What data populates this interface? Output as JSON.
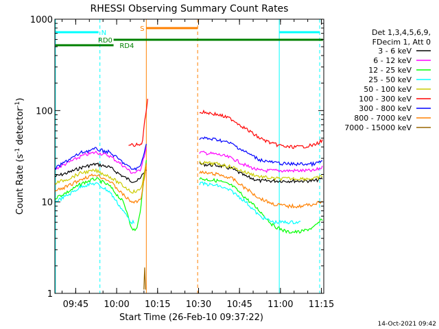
{
  "chart_data": {
    "type": "line",
    "title": "RHESSI Observing Summary Count Rates",
    "xlabel": "Start Time (26-Feb-10 09:37:22)",
    "ylabel_main": "Count Rate (s",
    "ylabel_sup": "-1",
    "ylabel_mid": " detector",
    "ylabel_sup2": "-1",
    "ylabel_end": ")",
    "y_scale": "log",
    "ylim": [
      1,
      1000
    ],
    "xlim_minutes": [
      0,
      98.5
    ],
    "x_ticks": [
      {
        "label": "09:45",
        "min": 7.63
      },
      {
        "label": "10:00",
        "min": 22.63
      },
      {
        "label": "10:15",
        "min": 37.63
      },
      {
        "label": "10:30",
        "min": 52.63
      },
      {
        "label": "10:45",
        "min": 67.63
      },
      {
        "label": "11:00",
        "min": 82.63
      },
      {
        "label": "11:15",
        "min": 97.63
      }
    ],
    "y_ticks": [
      {
        "label": "1",
        "v": 1
      },
      {
        "label": "10",
        "v": 10
      },
      {
        "label": "100",
        "v": 100
      },
      {
        "label": "1000",
        "v": 1000
      }
    ],
    "legend_header": [
      "Det 1,3,4,5,6,9,",
      "FDecim 1, Att 0"
    ],
    "series": [
      {
        "name": "3 - 6 keV",
        "color": "#000000",
        "segments": [
          {
            "x": [
              0,
              5,
              10,
              15,
              20,
              25,
              28,
              30,
              31.5,
              32,
              33.5
            ],
            "y": [
              19,
              21,
              24,
              26,
              24,
              19,
              17,
              17,
              18,
              20,
              23
            ]
          },
          {
            "x": [
              53,
              60,
              65,
              70,
              75,
              80,
              85,
              90,
              95,
              98
            ],
            "y": [
              26,
              25,
              23,
              19,
              17,
              17,
              17,
              17,
              17,
              18
            ]
          }
        ]
      },
      {
        "name": "6 - 12 keV",
        "color": "#ff00ff",
        "segments": [
          {
            "x": [
              0,
              5,
              10,
              15,
              20,
              25,
              28,
              30,
              31.5,
              32,
              33.5
            ],
            "y": [
              23,
              27,
              32,
              35,
              32,
              25,
              21,
              21,
              23,
              27,
              38
            ]
          },
          {
            "x": [
              53,
              60,
              65,
              70,
              75,
              80,
              85,
              90,
              95,
              98
            ],
            "y": [
              35,
              33,
              30,
              25,
              22,
              22,
              22,
              22,
              22,
              24
            ]
          }
        ]
      },
      {
        "name": "12 - 25 keV",
        "color": "#00ff00",
        "segments": [
          {
            "x": [
              0,
              5,
              10,
              15,
              20,
              25,
              27,
              28,
              30,
              31,
              32,
              33.5
            ],
            "y": [
              11,
              13,
              16,
              18,
              15,
              10,
              7,
              5,
              5,
              7,
              12,
              30
            ]
          },
          {
            "x": [
              53,
              60,
              65,
              70,
              75,
              80,
              85,
              90,
              95,
              98
            ],
            "y": [
              18,
              17,
              15,
              11,
              8,
              5.5,
              4.7,
              4.7,
              5.3,
              6.5
            ]
          }
        ]
      },
      {
        "name": "25 - 50 keV",
        "color": "#00ffff",
        "segments": [
          {
            "x": [
              0,
              5,
              10,
              15,
              20,
              25,
              28,
              29
            ],
            "y": [
              10,
              12,
              15,
              16,
              13,
              8,
              6,
              6
            ]
          },
          {
            "x": [
              53,
              60,
              65,
              70,
              75,
              80,
              85,
              88,
              90
            ],
            "y": [
              16,
              15,
              13,
              10,
              7,
              6,
              6,
              6,
              6
            ]
          }
        ]
      },
      {
        "name": "50 - 100 keV",
        "color": "#cccc00",
        "segments": [
          {
            "x": [
              0,
              5,
              10,
              15,
              20,
              25,
              28,
              30,
              31.5,
              32,
              33.5
            ],
            "y": [
              16,
              18,
              21,
              22,
              19,
              15,
              13,
              13,
              14,
              16,
              26
            ]
          },
          {
            "x": [
              53,
              60,
              65,
              70,
              75,
              80,
              85,
              90,
              95,
              98
            ],
            "y": [
              27,
              26,
              24,
              21,
              19,
              18,
              18,
              18,
              18,
              19
            ]
          }
        ]
      },
      {
        "name": "100 - 300 keV",
        "color": "#ff0000",
        "segments": [
          {
            "x": [
              27,
              30,
              31.5,
              32,
              33,
              33.5,
              34
            ],
            "y": [
              42,
              42,
              42,
              45,
              80,
              100,
              140
            ]
          },
          {
            "x": [
              53,
              55,
              60,
              65,
              70,
              75,
              80,
              85,
              90,
              95,
              98
            ],
            "y": [
              95,
              96,
              90,
              80,
              63,
              50,
              43,
              40,
              40,
              42,
              47
            ]
          }
        ]
      },
      {
        "name": "300 - 800 keV",
        "color": "#0000ff",
        "segments": [
          {
            "x": [
              0,
              5,
              10,
              15,
              20,
              25,
              28,
              30,
              31.5,
              32,
              33.5
            ],
            "y": [
              23,
              29,
              35,
              38,
              35,
              27,
              23,
              23,
              25,
              30,
              42
            ]
          },
          {
            "x": [
              53,
              60,
              65,
              70,
              75,
              80,
              85,
              90,
              95,
              98
            ],
            "y": [
              50,
              48,
              43,
              35,
              29,
              27,
              26,
              26,
              26,
              28
            ]
          }
        ]
      },
      {
        "name": "800 - 7000 keV",
        "color": "#ff8000",
        "segments": [
          {
            "x": [
              0,
              5,
              10,
              15,
              20,
              25,
              28,
              30,
              31.5,
              32,
              33.5
            ],
            "y": [
              13,
              15,
              18,
              20,
              17,
              12,
              10,
              10,
              11,
              13,
              26
            ]
          },
          {
            "x": [
              53,
              60,
              65,
              70,
              75,
              80,
              85,
              90,
              95,
              98
            ],
            "y": [
              21,
              20,
              18,
              14,
              11,
              9.5,
              9,
              9,
              9.5,
              10
            ]
          }
        ]
      },
      {
        "name": "7000 - 15000 keV",
        "color": "#996600",
        "segments": [
          {
            "x": [
              32.6,
              32.8,
              33.0,
              33.2
            ],
            "y": [
              1.1,
              2.3,
              1.6,
              1.1
            ]
          }
        ]
      }
    ],
    "vertical_markers": [
      {
        "min": 0.2,
        "color": "#00ffff",
        "style": "solid"
      },
      {
        "min": 16.5,
        "color": "#00ffff",
        "style": "dashed"
      },
      {
        "min": 33.5,
        "color": "#ff8000",
        "style": "solid"
      },
      {
        "min": 52.3,
        "color": "#ff8000",
        "style": "dashed"
      },
      {
        "min": 82.2,
        "color": "#00ffff",
        "style": "solid"
      },
      {
        "min": 97.0,
        "color": "#00ffff",
        "style": "dashed"
      }
    ],
    "state_bars": [
      {
        "label": "N",
        "color": "#00ffff",
        "segments": [
          [
            0.2,
            16.0
          ],
          [
            82.2,
            97.0
          ]
        ],
        "level": 1,
        "label_at": 17.0
      },
      {
        "label": "RD0",
        "color": "#008000",
        "segments": [
          [
            21.5,
            98.2
          ]
        ],
        "level": 2,
        "label_at": 15.8
      },
      {
        "label": "S",
        "color": "#ff8000",
        "segments": [
          [
            33.5,
            52.3
          ]
        ],
        "level": 0,
        "label_at": 31.2
      },
      {
        "label": "RD4",
        "color": "#008000",
        "segments": [
          [
            0.2,
            21.5
          ]
        ],
        "level": 3,
        "label_at": 23.7
      }
    ]
  },
  "footer_date": "14-Oct-2021 09:42"
}
